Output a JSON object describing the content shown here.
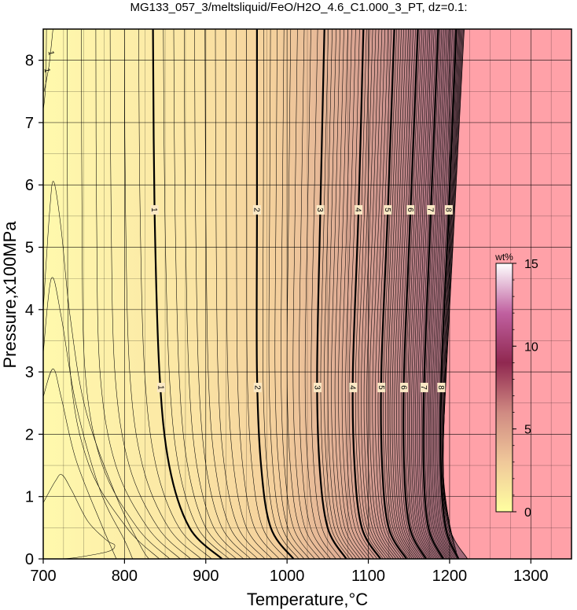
{
  "chart_data": {
    "type": "heatmap",
    "title": "MG133_057_3/meltsliquid/FeO/H2O_4.6_C1.000_3_PT, dz=0.1:",
    "xlabel": "Temperature,°C",
    "ylabel": "Pressure,x100MPa",
    "xlim": [
      700,
      1350
    ],
    "ylim": [
      0,
      8.5
    ],
    "x_ticks": [
      700,
      800,
      900,
      1000,
      1100,
      1200,
      1300
    ],
    "y_ticks": [
      0,
      1,
      2,
      3,
      4,
      5,
      6,
      7,
      8
    ],
    "grid": true,
    "colorbar": {
      "title": "wt%",
      "range": [
        0,
        15
      ],
      "ticks": [
        0,
        5,
        10,
        15
      ],
      "colors": [
        "#ffffa0",
        "#f0c89a",
        "#d08a82",
        "#902850",
        "#c060a0",
        "#ffffff"
      ]
    },
    "background_color": "#fff6a8",
    "no_melt_color": "#ffa1a8",
    "contour_labels": [
      "1",
      "2",
      "3",
      "4",
      "5",
      "6",
      "7",
      "8"
    ],
    "contours": [
      {
        "level": 1,
        "points": [
          [
            835,
            8.5
          ],
          [
            837,
            5.6
          ],
          [
            843,
            3.0
          ],
          [
            855,
            1.5
          ],
          [
            880,
            0.5
          ],
          [
            920,
            0
          ]
        ]
      },
      {
        "level": 2,
        "points": [
          [
            963,
            8.5
          ],
          [
            963,
            5.6
          ],
          [
            963,
            3.0
          ],
          [
            968,
            1.5
          ],
          [
            980,
            0.5
          ],
          [
            1008,
            0
          ]
        ]
      },
      {
        "level": 3,
        "points": [
          [
            1046,
            8.5
          ],
          [
            1041,
            5.6
          ],
          [
            1037,
            3.0
          ],
          [
            1040,
            1.5
          ],
          [
            1050,
            0.5
          ],
          [
            1073,
            0
          ]
        ]
      },
      {
        "level": 4,
        "points": [
          [
            1094,
            8.5
          ],
          [
            1088,
            5.6
          ],
          [
            1081,
            3.0
          ],
          [
            1083,
            1.5
          ],
          [
            1092,
            0.5
          ],
          [
            1115,
            0
          ]
        ]
      },
      {
        "level": 5,
        "points": [
          [
            1132,
            8.5
          ],
          [
            1124,
            5.6
          ],
          [
            1116,
            3.0
          ],
          [
            1117,
            1.5
          ],
          [
            1125,
            0.5
          ],
          [
            1147,
            0
          ]
        ]
      },
      {
        "level": 6,
        "points": [
          [
            1161,
            8.5
          ],
          [
            1152,
            5.6
          ],
          [
            1144,
            3.0
          ],
          [
            1144,
            1.5
          ],
          [
            1151,
            0.5
          ],
          [
            1171,
            0
          ]
        ]
      },
      {
        "level": 7,
        "points": [
          [
            1186,
            8.5
          ],
          [
            1177,
            5.6
          ],
          [
            1169,
            3.0
          ],
          [
            1168,
            1.5
          ],
          [
            1174,
            0.5
          ],
          [
            1192,
            0
          ]
        ]
      },
      {
        "level": 8,
        "points": [
          [
            1208,
            8.5
          ],
          [
            1199,
            5.6
          ],
          [
            1190,
            3.0
          ],
          [
            1189,
            1.5
          ],
          [
            1195,
            0.5
          ],
          [
            1211,
            0
          ]
        ]
      }
    ],
    "solidus": [
      [
        1218,
        8.5
      ],
      [
        1212,
        7.0
      ],
      [
        1204,
        5.0
      ],
      [
        1196,
        3.0
      ],
      [
        1192,
        1.5
      ],
      [
        1200,
        0.5
      ],
      [
        1222,
        0
      ]
    ]
  }
}
